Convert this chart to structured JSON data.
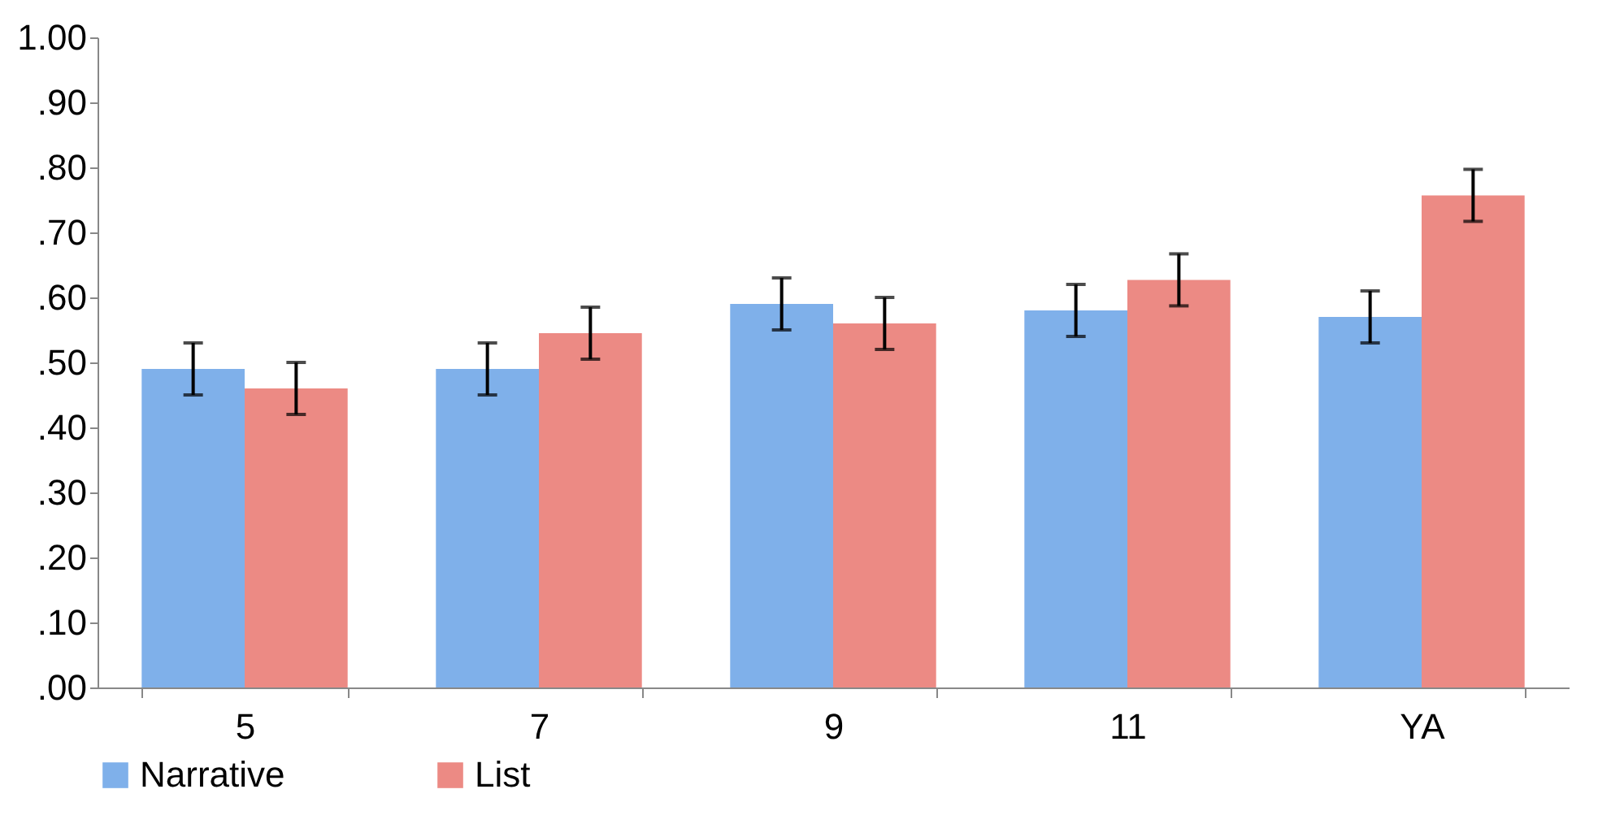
{
  "chart_data": {
    "type": "bar",
    "categories": [
      "5",
      "7",
      "9",
      "11",
      "YA"
    ],
    "series": [
      {
        "name": "Narrative",
        "color": "#7fb0ea",
        "values": [
          0.49,
          0.49,
          0.59,
          0.58,
          0.57
        ],
        "errors": [
          0.04,
          0.04,
          0.04,
          0.04,
          0.04
        ]
      },
      {
        "name": "List",
        "color": "#ec8a84",
        "values": [
          0.46,
          0.545,
          0.56,
          0.627,
          0.757
        ],
        "errors": [
          0.04,
          0.04,
          0.04,
          0.04,
          0.04
        ]
      }
    ],
    "ylim": [
      0,
      1
    ],
    "yticks": [
      {
        "value": 0,
        "label": ".00"
      },
      {
        "value": 0.1,
        "label": ".10"
      },
      {
        "value": 0.2,
        "label": ".20"
      },
      {
        "value": 0.3,
        "label": ".30"
      },
      {
        "value": 0.4,
        "label": ".40"
      },
      {
        "value": 0.5,
        "label": ".50"
      },
      {
        "value": 0.6,
        "label": ".60"
      },
      {
        "value": 0.7,
        "label": ".70"
      },
      {
        "value": 0.8,
        "label": ".80"
      },
      {
        "value": 0.9,
        "label": ".90"
      },
      {
        "value": 1,
        "label": "1.00"
      }
    ],
    "grid": false,
    "legend": "bottom"
  }
}
